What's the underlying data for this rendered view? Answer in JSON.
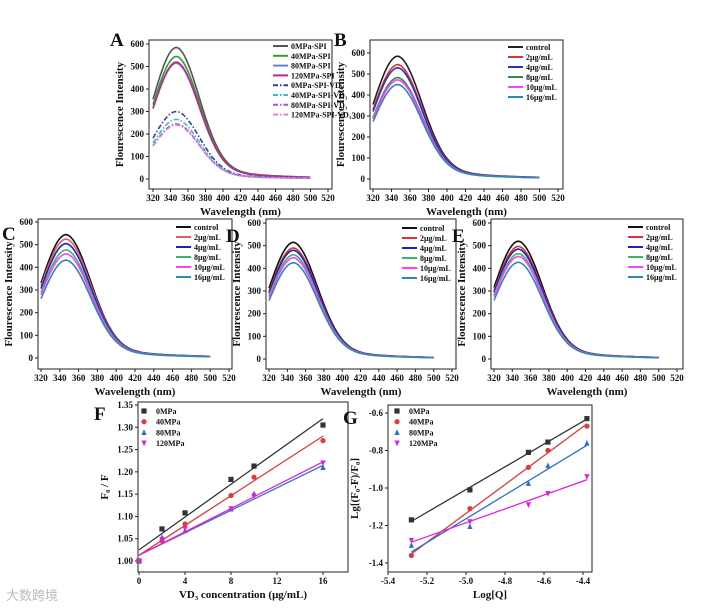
{
  "watermark": "大数跨境",
  "chart_data": [
    {
      "panel": "A",
      "type": "line",
      "xlabel": "Wavelength (nm)",
      "ylabel": "Flourescence Intensity",
      "xlim": [
        320,
        520
      ],
      "ylim": [
        0,
        600
      ],
      "xticks": [
        320,
        340,
        360,
        380,
        400,
        420,
        440,
        460,
        480,
        500,
        520
      ],
      "yticks": [
        0,
        100,
        200,
        300,
        400,
        500,
        600
      ],
      "x_range": [
        320,
        500
      ],
      "peak_wavelength": 347,
      "legend": "top-right",
      "series": [
        {
          "name": "0MPa-SPI",
          "peak": 585,
          "color": "#555555",
          "dash": "solid"
        },
        {
          "name": "40MPa-SPI",
          "peak": 545,
          "color": "#2ca02c",
          "dash": "solid"
        },
        {
          "name": "80MPa-SPI",
          "peak": 515,
          "color": "#6a7fd8",
          "dash": "solid"
        },
        {
          "name": "120MPa-SPI",
          "peak": 520,
          "color": "#c0248e",
          "dash": "solid"
        },
        {
          "name": "0MPa-SPI-VD₃",
          "peak": 300,
          "color": "#3a3ab8",
          "dash": "dashdot"
        },
        {
          "name": "40MPa-SPI-VD₃",
          "peak": 265,
          "color": "#2cc6c6",
          "dash": "dashdot"
        },
        {
          "name": "80MPa-SPI-VD₃",
          "peak": 245,
          "color": "#b04ee0",
          "dash": "dashdot"
        },
        {
          "name": "120MPa-SPI-VD₃",
          "peak": 240,
          "color": "#e080d0",
          "dash": "dashdot"
        }
      ]
    },
    {
      "panel": "B",
      "type": "line",
      "xlabel": "Wavelength (nm)",
      "ylabel": "Flourescence Intensity",
      "xlim": [
        320,
        520
      ],
      "ylim": [
        0,
        600
      ],
      "xticks": [
        320,
        340,
        360,
        380,
        400,
        420,
        440,
        460,
        480,
        500,
        520
      ],
      "yticks": [
        0,
        100,
        200,
        300,
        400,
        500,
        600
      ],
      "x_range": [
        320,
        500
      ],
      "peak_wavelength": 347,
      "legend": "top-right",
      "series": [
        {
          "name": "control",
          "peak": 585,
          "color": "#222222"
        },
        {
          "name": "2μg/mL",
          "peak": 545,
          "color": "#e03030"
        },
        {
          "name": "4μg/mL",
          "peak": 530,
          "color": "#3030c0"
        },
        {
          "name": "8μg/mL",
          "peak": 483,
          "color": "#2e8b57"
        },
        {
          "name": "10μg/mL",
          "peak": 472,
          "color": "#ff40ff"
        },
        {
          "name": "16μg/mL",
          "peak": 450,
          "color": "#2a8ab8"
        }
      ]
    },
    {
      "panel": "C",
      "type": "line",
      "xlabel": "Wavelength (nm)",
      "ylabel": "Flourescence Intensity",
      "xlim": [
        320,
        520
      ],
      "ylim": [
        0,
        600
      ],
      "xticks": [
        320,
        340,
        360,
        380,
        400,
        420,
        440,
        460,
        480,
        500,
        520
      ],
      "yticks": [
        0,
        100,
        200,
        300,
        400,
        500,
        600
      ],
      "x_range": [
        320,
        500
      ],
      "peak_wavelength": 347,
      "legend": "top-right",
      "series": [
        {
          "name": "control",
          "peak": 545,
          "color": "#111111"
        },
        {
          "name": "2μg/mL",
          "peak": 525,
          "color": "#e06060"
        },
        {
          "name": "4μg/mL",
          "peak": 505,
          "color": "#2020c0"
        },
        {
          "name": "8μg/mL",
          "peak": 477,
          "color": "#3cb371"
        },
        {
          "name": "10μg/mL",
          "peak": 460,
          "color": "#ff40ff"
        },
        {
          "name": "16μg/mL",
          "peak": 432,
          "color": "#2a8ab8"
        }
      ]
    },
    {
      "panel": "D",
      "type": "line",
      "xlabel": "Wavelength (nm)",
      "ylabel": "Flourescence Intensity",
      "xlim": [
        320,
        520
      ],
      "ylim": [
        0,
        600
      ],
      "xticks": [
        320,
        340,
        360,
        380,
        400,
        420,
        440,
        460,
        480,
        500,
        520
      ],
      "yticks": [
        0,
        100,
        200,
        300,
        400,
        500,
        600
      ],
      "x_range": [
        320,
        500
      ],
      "peak_wavelength": 347,
      "legend": "top-right",
      "series": [
        {
          "name": "control",
          "peak": 515,
          "color": "#111111"
        },
        {
          "name": "2μg/mL",
          "peak": 490,
          "color": "#e03030"
        },
        {
          "name": "4μg/mL",
          "peak": 480,
          "color": "#2020c0"
        },
        {
          "name": "8μg/mL",
          "peak": 460,
          "color": "#3cb371"
        },
        {
          "name": "10μg/mL",
          "peak": 447,
          "color": "#ff40ff"
        },
        {
          "name": "16μg/mL",
          "peak": 425,
          "color": "#2a8ab8"
        }
      ]
    },
    {
      "panel": "E",
      "type": "line",
      "xlabel": "Wavelength (nm)",
      "ylabel": "Flourescence Intensity",
      "xlim": [
        320,
        520
      ],
      "ylim": [
        0,
        600
      ],
      "xticks": [
        320,
        340,
        360,
        380,
        400,
        420,
        440,
        460,
        480,
        500,
        520
      ],
      "yticks": [
        0,
        100,
        200,
        300,
        400,
        500,
        600
      ],
      "x_range": [
        320,
        500
      ],
      "peak_wavelength": 347,
      "legend": "top-right",
      "series": [
        {
          "name": "control",
          "peak": 520,
          "color": "#111111"
        },
        {
          "name": "2μg/mL",
          "peak": 497,
          "color": "#e03030"
        },
        {
          "name": "4μg/mL",
          "peak": 485,
          "color": "#2020c0"
        },
        {
          "name": "8μg/mL",
          "peak": 465,
          "color": "#3cb371"
        },
        {
          "name": "10μg/mL",
          "peak": 453,
          "color": "#ff40ff"
        },
        {
          "name": "16μg/mL",
          "peak": 427,
          "color": "#2a8ab8"
        }
      ]
    },
    {
      "panel": "F",
      "type": "scatter",
      "xlabel": "VD₃ concentration (μg/mL)",
      "ylabel": "F₀ / F",
      "xlim": [
        0,
        18
      ],
      "ylim": [
        0.975,
        1.35
      ],
      "xticks": [
        0,
        4,
        8,
        12,
        16
      ],
      "yticks": [
        1.0,
        1.05,
        1.1,
        1.15,
        1.2,
        1.25,
        1.3,
        1.35
      ],
      "x": [
        0,
        2,
        4,
        8,
        10,
        16
      ],
      "legend": "top-left",
      "series": [
        {
          "name": "0MPa",
          "marker": "square",
          "color": "#333333",
          "values": [
            1.0,
            1.072,
            1.108,
            1.183,
            1.213,
            1.305
          ],
          "fit": [
            1.025,
            0.0184
          ]
        },
        {
          "name": "40MPa",
          "marker": "circle",
          "color": "#e03a3a",
          "values": [
            1.0,
            1.045,
            1.083,
            1.147,
            1.188,
            1.27
          ],
          "fit": [
            1.013,
            0.0167
          ]
        },
        {
          "name": "80MPa",
          "marker": "triangle-up",
          "color": "#2a6fd0",
          "values": [
            1.0,
            1.053,
            1.068,
            1.117,
            1.151,
            1.21
          ],
          "fit": [
            1.013,
            0.0126
          ]
        },
        {
          "name": "120MPa",
          "marker": "triangle-down",
          "color": "#e020e0",
          "values": [
            1.0,
            1.048,
            1.072,
            1.117,
            1.146,
            1.22
          ],
          "fit": [
            1.013,
            0.0131
          ]
        }
      ]
    },
    {
      "panel": "G",
      "type": "scatter",
      "xlabel": "Log[Q]",
      "ylabel": "Lg[(F₀-F)/F₀]",
      "xlim": [
        -5.4,
        -4.3
      ],
      "ylim": [
        -1.45,
        -0.55
      ],
      "xticks": [
        -5.4,
        -5.2,
        -5.0,
        -4.8,
        -4.6,
        -4.4
      ],
      "yticks": [
        -1.4,
        -1.2,
        -1.0,
        -0.8,
        -0.6
      ],
      "x": [
        -5.28,
        -4.98,
        -4.68,
        -4.58,
        -4.38
      ],
      "legend": "top-left",
      "series": [
        {
          "name": "0MPa",
          "marker": "square",
          "color": "#333333",
          "values": [
            -1.17,
            -1.01,
            -0.81,
            -0.755,
            -0.63
          ],
          "fit": "linear"
        },
        {
          "name": "40MPa",
          "marker": "circle",
          "color": "#e03a3a",
          "values": [
            -1.36,
            -1.11,
            -0.89,
            -0.8,
            -0.67
          ],
          "fit": "linear"
        },
        {
          "name": "80MPa",
          "marker": "triangle-up",
          "color": "#2a6fd0",
          "values": [
            -1.305,
            -1.205,
            -0.975,
            -0.88,
            -0.76
          ],
          "fit": "linear"
        },
        {
          "name": "120MPa",
          "marker": "triangle-down",
          "color": "#e020e0",
          "values": [
            -1.28,
            -1.18,
            -1.09,
            -1.03,
            -0.94
          ],
          "fit": "linear"
        }
      ]
    }
  ]
}
